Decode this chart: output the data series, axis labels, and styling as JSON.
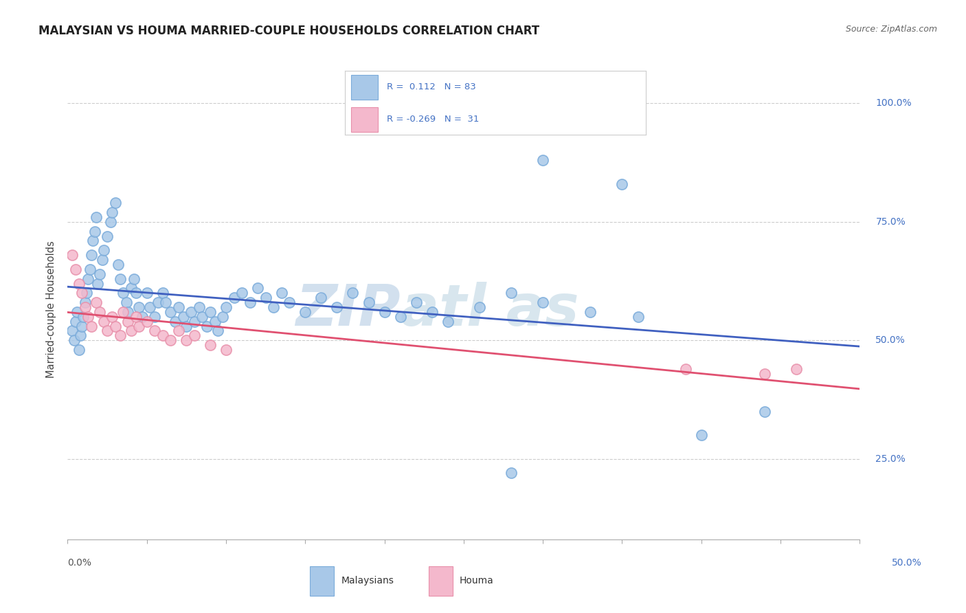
{
  "title": "MALAYSIAN VS HOUMA MARRIED-COUPLE HOUSEHOLDS CORRELATION CHART",
  "source": "Source: ZipAtlas.com",
  "ylabel_text": "Married-couple Households",
  "xlim": [
    0.0,
    0.5
  ],
  "ylim": [
    0.08,
    1.05
  ],
  "ytick_vals": [
    0.25,
    0.5,
    0.75,
    1.0
  ],
  "ytick_labels": [
    "25.0%",
    "50.0%",
    "75.0%",
    "100.0%"
  ],
  "blue_color": "#a8c8e8",
  "blue_edge": "#7aabda",
  "pink_color": "#f4b8cc",
  "pink_edge": "#e890aa",
  "trend_blue": "#4060c0",
  "trend_pink": "#e05070",
  "background_color": "#ffffff",
  "grid_color": "#cccccc",
  "watermark_zip_color": "#c0d4e8",
  "watermark_atlas_color": "#c8dce8",
  "title_color": "#222222",
  "ylabel_color": "#444444",
  "ytick_color": "#4472c4",
  "xtick_color": "#555555",
  "source_color": "#666666",
  "legend_text_color": "#4472c4",
  "legend_border_color": "#cccccc",
  "blue_scatter_x": [
    0.003,
    0.004,
    0.005,
    0.006,
    0.007,
    0.008,
    0.009,
    0.01,
    0.011,
    0.012,
    0.013,
    0.014,
    0.015,
    0.016,
    0.017,
    0.018,
    0.019,
    0.02,
    0.022,
    0.023,
    0.025,
    0.027,
    0.028,
    0.03,
    0.032,
    0.033,
    0.035,
    0.037,
    0.038,
    0.04,
    0.042,
    0.043,
    0.045,
    0.047,
    0.05,
    0.052,
    0.055,
    0.057,
    0.06,
    0.062,
    0.065,
    0.068,
    0.07,
    0.073,
    0.075,
    0.078,
    0.08,
    0.083,
    0.085,
    0.088,
    0.09,
    0.093,
    0.095,
    0.098,
    0.1,
    0.105,
    0.11,
    0.115,
    0.12,
    0.125,
    0.13,
    0.135,
    0.14,
    0.15,
    0.16,
    0.17,
    0.18,
    0.19,
    0.2,
    0.21,
    0.22,
    0.23,
    0.24,
    0.26,
    0.28,
    0.3,
    0.33,
    0.36,
    0.4,
    0.44,
    0.3,
    0.35,
    0.28
  ],
  "blue_scatter_y": [
    0.52,
    0.5,
    0.54,
    0.56,
    0.48,
    0.51,
    0.53,
    0.55,
    0.58,
    0.6,
    0.63,
    0.65,
    0.68,
    0.71,
    0.73,
    0.76,
    0.62,
    0.64,
    0.67,
    0.69,
    0.72,
    0.75,
    0.77,
    0.79,
    0.66,
    0.63,
    0.6,
    0.58,
    0.56,
    0.61,
    0.63,
    0.6,
    0.57,
    0.55,
    0.6,
    0.57,
    0.55,
    0.58,
    0.6,
    0.58,
    0.56,
    0.54,
    0.57,
    0.55,
    0.53,
    0.56,
    0.54,
    0.57,
    0.55,
    0.53,
    0.56,
    0.54,
    0.52,
    0.55,
    0.57,
    0.59,
    0.6,
    0.58,
    0.61,
    0.59,
    0.57,
    0.6,
    0.58,
    0.56,
    0.59,
    0.57,
    0.6,
    0.58,
    0.56,
    0.55,
    0.58,
    0.56,
    0.54,
    0.57,
    0.6,
    0.58,
    0.56,
    0.55,
    0.3,
    0.35,
    0.88,
    0.83,
    0.22
  ],
  "pink_scatter_x": [
    0.003,
    0.005,
    0.007,
    0.009,
    0.011,
    0.013,
    0.015,
    0.018,
    0.02,
    0.023,
    0.025,
    0.028,
    0.03,
    0.033,
    0.035,
    0.038,
    0.04,
    0.043,
    0.045,
    0.05,
    0.055,
    0.06,
    0.065,
    0.07,
    0.075,
    0.08,
    0.09,
    0.1,
    0.39,
    0.44,
    0.46
  ],
  "pink_scatter_y": [
    0.68,
    0.65,
    0.62,
    0.6,
    0.57,
    0.55,
    0.53,
    0.58,
    0.56,
    0.54,
    0.52,
    0.55,
    0.53,
    0.51,
    0.56,
    0.54,
    0.52,
    0.55,
    0.53,
    0.54,
    0.52,
    0.51,
    0.5,
    0.52,
    0.5,
    0.51,
    0.49,
    0.48,
    0.44,
    0.43,
    0.44
  ]
}
